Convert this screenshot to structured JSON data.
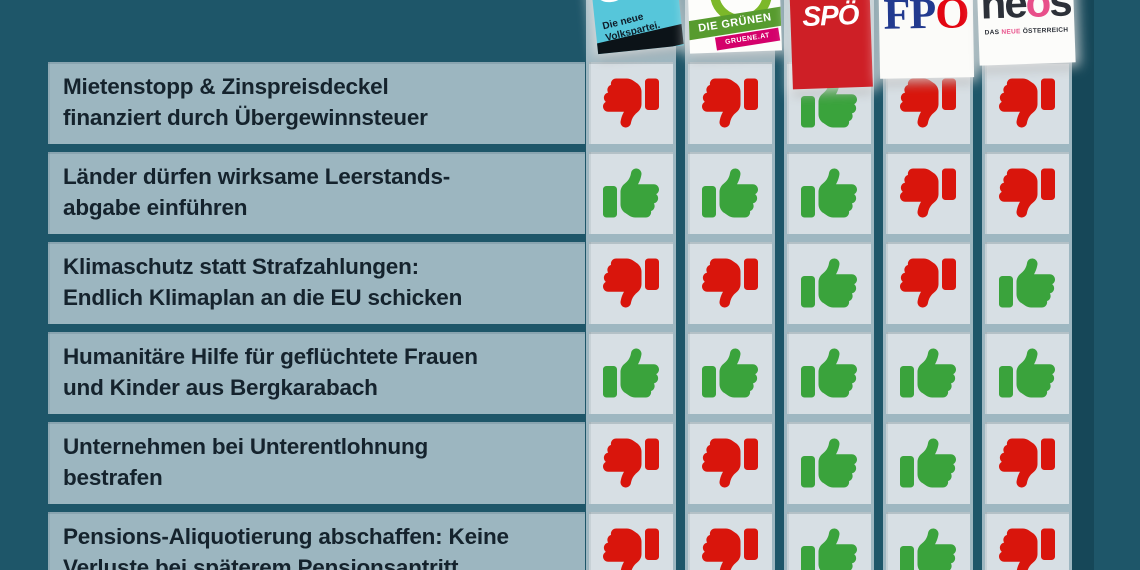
{
  "infographic": {
    "background_color": "#1e5669",
    "statement_panel_color": "#9cb6c0",
    "vote_cell_color": "#d7dfe4",
    "thumb_up_color": "#3aa33c",
    "thumb_down_color": "#d9150c"
  },
  "parties": [
    {
      "name": "ÖVP",
      "logo_main": "ÖVP",
      "logo_sub": "Die neue\nVolkspartei.",
      "brand_color": "#56c6da"
    },
    {
      "name": "Die Grünen",
      "logo_main": "DIE GRÜNEN",
      "logo_sub": "GRUENE.AT",
      "brand_color": "#579b2e",
      "banner2_color": "#d4006b"
    },
    {
      "name": "SPÖ",
      "logo_main": "SPÖ",
      "brand_color": "#ce1f26"
    },
    {
      "name": "FPÖ",
      "logo_parts": [
        "FP",
        "Ö"
      ],
      "brand_color": "#223a8f",
      "accent_color": "#e30613"
    },
    {
      "name": "NEOS",
      "logo_parts": [
        "ne",
        "o",
        "s"
      ],
      "logo_sub_parts": [
        "DAS",
        "NEUE",
        "ÖSTERREICH"
      ],
      "brand_color": "#e84f8a"
    }
  ],
  "rows": [
    {
      "statement": "Mietenstopp & Zinspreisdeckel finanziert durch Übergewinnsteuer",
      "line1": "Mietenstopp & Zinspreisdeckel",
      "line2": "finanziert durch Übergewinnsteuer",
      "votes": [
        "down",
        "down",
        "up",
        "down",
        "down"
      ]
    },
    {
      "statement": "Länder dürfen wirksame Leerstandsabgabe einführen",
      "line1": "Länder dürfen wirksame Leerstands-",
      "line2": "abgabe einführen",
      "votes": [
        "up",
        "up",
        "up",
        "down",
        "down"
      ]
    },
    {
      "statement": "Klimaschutz statt Strafzahlungen: Endlich Klimaplan an die EU schicken",
      "line1": "Klimaschutz statt Strafzahlungen:",
      "line2": "Endlich Klimaplan an die EU schicken",
      "votes": [
        "down",
        "down",
        "up",
        "down",
        "up"
      ]
    },
    {
      "statement": "Humanitäre Hilfe für geflüchtete Frauen und Kinder aus Bergkarabach",
      "line1": "Humanitäre Hilfe für geflüchtete Frauen",
      "line2": "und Kinder aus Bergkarabach",
      "votes": [
        "up",
        "up",
        "up",
        "up",
        "up"
      ]
    },
    {
      "statement": "Unternehmen bei Unterentlohnung bestrafen",
      "line1": "Unternehmen bei Unterentlohnung",
      "line2": "bestrafen",
      "votes": [
        "down",
        "down",
        "up",
        "up",
        "down"
      ]
    },
    {
      "statement": "Pensions-Aliquotierung abschaffen: Keine Verluste bei späterem Pensionsantritt",
      "line1": "Pensions-Aliquotierung abschaffen: Keine",
      "line2": "Verluste bei späterem Pensionsantritt",
      "votes": [
        "down",
        "down",
        "up",
        "up",
        "down"
      ]
    }
  ],
  "chart_data": {
    "type": "table",
    "columns": [
      "Forderung",
      "ÖVP",
      "Die Grünen",
      "SPÖ",
      "FPÖ",
      "NEOS"
    ],
    "rows": [
      [
        "Mietenstopp & Zinspreisdeckel finanziert durch Übergewinnsteuer",
        "down",
        "down",
        "up",
        "down",
        "down"
      ],
      [
        "Länder dürfen wirksame Leerstandsabgabe einführen",
        "up",
        "up",
        "up",
        "down",
        "down"
      ],
      [
        "Klimaschutz statt Strafzahlungen: Endlich Klimaplan an die EU schicken",
        "down",
        "down",
        "up",
        "down",
        "up"
      ],
      [
        "Humanitäre Hilfe für geflüchtete Frauen und Kinder aus Bergkarabach",
        "up",
        "up",
        "up",
        "up",
        "up"
      ],
      [
        "Unternehmen bei Unterentlohnung bestrafen",
        "down",
        "down",
        "up",
        "up",
        "down"
      ],
      [
        "Pensions-Aliquotierung abschaffen: Keine Verluste bei späterem Pensionsantritt",
        "down",
        "down",
        "up",
        "up",
        "down"
      ]
    ],
    "cell_encoding": {
      "up": "green thumbs-up",
      "down": "red thumbs-down"
    }
  }
}
